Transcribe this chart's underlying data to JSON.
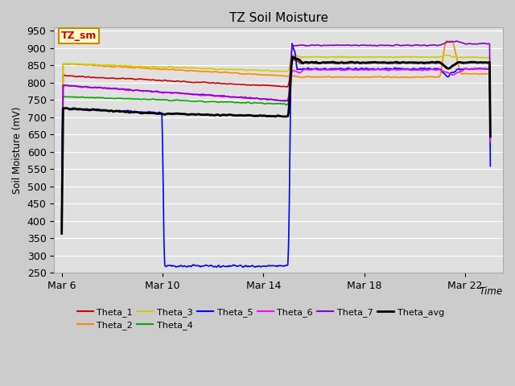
{
  "title": "TZ Soil Moisture",
  "xlabel": "Time",
  "ylabel": "Soil Moisture (mV)",
  "ylim": [
    250,
    960
  ],
  "yticks": [
    250,
    300,
    350,
    400,
    450,
    500,
    550,
    600,
    650,
    700,
    750,
    800,
    850,
    900,
    950
  ],
  "x_tick_labels": [
    "Mar 6",
    "Mar 10",
    "Mar 14",
    "Mar 18",
    "Mar 22"
  ],
  "x_tick_pos": [
    0,
    4,
    8,
    12,
    16
  ],
  "xlim": [
    -0.3,
    17.5
  ],
  "fig_bg": "#cccccc",
  "plot_bg": "#e0e0e0",
  "grid_color": "#ffffff",
  "annotation_label": "TZ_sm",
  "annotation_bg": "#ffffcc",
  "annotation_border": "#cc8800",
  "annotation_text_color": "#cc0000",
  "series_colors": {
    "Theta_1": "#cc0000",
    "Theta_2": "#ff8800",
    "Theta_3": "#cccc00",
    "Theta_4": "#00aa00",
    "Theta_5": "#0000ff",
    "Theta_6": "#ff00ff",
    "Theta_7": "#8800cc",
    "Theta_avg": "#000000"
  },
  "series_lw": {
    "Theta_1": 1.2,
    "Theta_2": 1.2,
    "Theta_3": 1.2,
    "Theta_4": 1.2,
    "Theta_5": 1.2,
    "Theta_6": 1.2,
    "Theta_7": 1.2,
    "Theta_avg": 2.0
  }
}
